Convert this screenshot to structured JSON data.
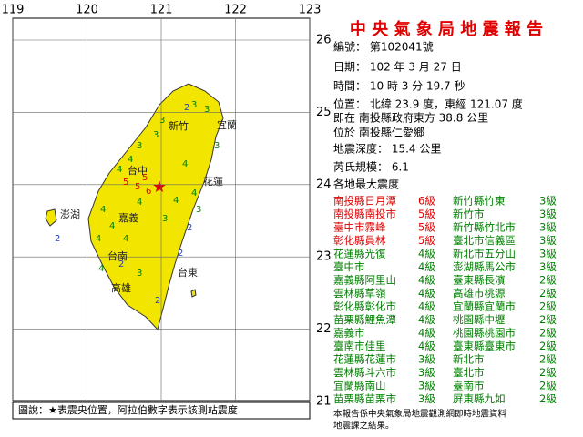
{
  "map": {
    "lon_ticks": [
      119,
      120,
      121,
      122,
      123
    ],
    "lat_ticks": [
      26,
      25,
      24,
      23,
      22,
      21
    ],
    "places": [
      "新竹",
      "宜蘭",
      "台中",
      "花蓮",
      "嘉義",
      "澎湖",
      "台南",
      "台東",
      "高雄"
    ],
    "intensities": [
      "3",
      "3",
      "2",
      "3",
      "3",
      "3",
      "4",
      "4",
      "5",
      "5",
      "6",
      "5",
      "4",
      "4",
      "4",
      "4",
      "4",
      "3",
      "4",
      "4",
      "4",
      "3",
      "2",
      "3",
      "2",
      "2",
      "2",
      "2",
      "3",
      "4"
    ]
  },
  "legend": "圖說：★表震央位置，阿拉伯數字表示該測站震度",
  "report": {
    "title": "中 央 氣 象 局 地 震 報 告",
    "lines": [
      "編號：  第102041號",
      "日期：  102  年  3  月  27  日",
      "時間：  10  時  3  分  19.7  秒",
      "位置：  北緯  23.9  度，東經  121.07  度",
      "即在  南投縣政府東方  38.8  公里",
      "位於  南投縣仁愛鄉",
      "地震深度：  15.4  公里",
      "芮氏規模：  6.1",
      "各地最大震度"
    ],
    "left": [
      [
        "南投縣日月潭",
        "6級"
      ],
      [
        "南投縣南投市",
        "5級"
      ],
      [
        "臺中市霧峰",
        "5級"
      ],
      [
        "彰化縣員林",
        "5級"
      ],
      [
        "花蓮縣光復",
        "4級"
      ],
      [
        "臺中市",
        "4級"
      ],
      [
        "嘉義縣阿里山",
        "4級"
      ],
      [
        "雲林縣草嶺",
        "4級"
      ],
      [
        "彰化縣彰化市",
        "4級"
      ],
      [
        "苗栗縣鯉魚潭",
        "4級"
      ],
      [
        "嘉義市",
        "4級"
      ],
      [
        "臺南市佳里",
        "4級"
      ],
      [
        "花蓮縣花蓮市",
        "3級"
      ],
      [
        "雲林縣斗六市",
        "3級"
      ],
      [
        "宜蘭縣南山",
        "3級"
      ],
      [
        "苗栗縣苗栗市",
        "3級"
      ]
    ],
    "right": [
      [
        "新竹縣竹東",
        "3級"
      ],
      [
        "新竹市",
        "3級"
      ],
      [
        "新竹縣竹北市",
        "3級"
      ],
      [
        "臺北市信義區",
        "3級"
      ],
      [
        "新北市五分山",
        "3級"
      ],
      [
        "澎湖縣馬公市",
        "3級"
      ],
      [
        "臺東縣長濱",
        "2級"
      ],
      [
        "高雄市桃源",
        "2級"
      ],
      [
        "宜蘭縣宜蘭市",
        "2級"
      ],
      [
        "桃園縣中壢",
        "2級"
      ],
      [
        "桃園縣桃園市",
        "2級"
      ],
      [
        "臺東縣臺東市",
        "2級"
      ],
      [
        "新北市",
        "2級"
      ],
      [
        "臺北市",
        "2級"
      ],
      [
        "臺南市",
        "2級"
      ],
      [
        "屏東縣九如",
        "2級"
      ]
    ],
    "strong_color": "#e00000",
    "normal_color": "#008000",
    "strong_rows": 4,
    "footnote": [
      "本報告係中央氣象局地震觀測網即時地震資料",
      "地震課之結果。"
    ]
  }
}
